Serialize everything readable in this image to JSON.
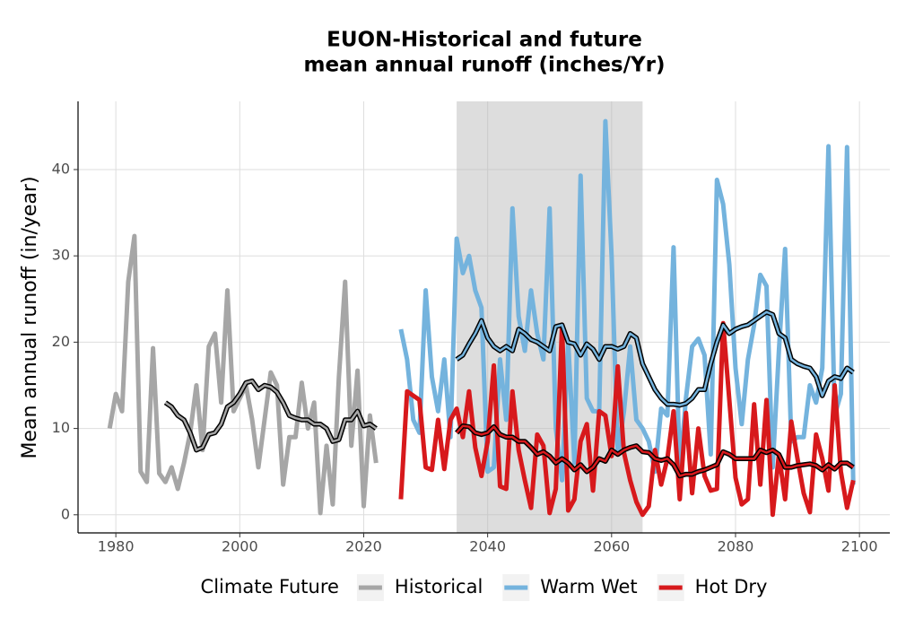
{
  "chart_data": {
    "type": "line",
    "title": [
      "EUON-Historical and future",
      "mean annual runoff (inches/Yr)"
    ],
    "y_label": "Mean annual runoff (in/year)",
    "xlim": [
      1973.9,
      2104.9
    ],
    "ylim": [
      -2.1,
      47.9
    ],
    "xticks": [
      1980,
      2000,
      2020,
      2040,
      2060,
      2080,
      2100
    ],
    "yticks": [
      0,
      10,
      20,
      30,
      40
    ],
    "grid": true,
    "shade": [
      2035,
      2065
    ],
    "legend_title": "Climate Future",
    "legend_position": "bottom",
    "series": [
      {
        "name": "Historical",
        "color": "#a6a6a6",
        "x": [
          1979,
          1980,
          1981,
          1982,
          1983,
          1984,
          1985,
          1986,
          1987,
          1988,
          1989,
          1990,
          1991,
          1992,
          1993,
          1994,
          1995,
          1996,
          1997,
          1998,
          1999,
          2000,
          2001,
          2002,
          2003,
          2004,
          2005,
          2006,
          2007,
          2008,
          2009,
          2010,
          2011,
          2012,
          2013,
          2014,
          2015,
          2016,
          2017,
          2018,
          2019,
          2020,
          2021,
          2022
        ],
        "values": [
          10,
          14,
          12,
          27,
          32.3,
          5,
          3.8,
          19.3,
          4.8,
          3.8,
          5.5,
          3,
          6,
          9.5,
          15,
          7.5,
          19.5,
          21,
          13,
          26,
          12,
          13.5,
          15,
          11,
          5.5,
          11,
          16.5,
          15,
          3.5,
          9,
          9,
          15.3,
          10,
          13,
          0.2,
          8,
          1.2,
          16,
          27,
          8,
          16.7,
          1,
          11.5,
          6
        ]
      },
      {
        "name": "Warm Wet",
        "color": "#74b3dd",
        "x": [
          2026,
          2027,
          2028,
          2029,
          2030,
          2031,
          2032,
          2033,
          2034,
          2035,
          2036,
          2037,
          2038,
          2039,
          2040,
          2041,
          2042,
          2043,
          2044,
          2045,
          2046,
          2047,
          2048,
          2049,
          2050,
          2051,
          2052,
          2053,
          2054,
          2055,
          2056,
          2057,
          2058,
          2059,
          2060,
          2061,
          2062,
          2063,
          2064,
          2065,
          2066,
          2067,
          2068,
          2069,
          2070,
          2071,
          2072,
          2073,
          2074,
          2075,
          2076,
          2077,
          2078,
          2079,
          2080,
          2081,
          2082,
          2083,
          2084,
          2085,
          2086,
          2087,
          2088,
          2089,
          2090,
          2091,
          2092,
          2093,
          2094,
          2095,
          2096,
          2097,
          2098,
          2099
        ],
        "values": [
          21.5,
          18,
          11,
          9.5,
          26,
          16,
          12,
          18,
          9,
          32,
          28,
          30,
          26,
          24,
          5,
          5.5,
          18,
          11,
          35.5,
          23,
          19,
          26,
          21,
          18,
          35.5,
          10,
          4,
          20,
          6,
          39.3,
          13.5,
          12,
          12,
          45.6,
          30,
          7,
          12,
          19.5,
          11,
          10,
          8.5,
          5,
          12.3,
          11.5,
          31,
          5,
          13.5,
          19.5,
          20.4,
          18.5,
          7,
          38.8,
          36,
          29,
          17,
          10.5,
          18,
          22,
          27.8,
          26.5,
          5.5,
          19,
          30.8,
          8.5,
          9,
          9,
          15,
          13,
          17,
          42.7,
          11.5,
          14,
          42.6,
          3.5
        ]
      },
      {
        "name": "Hot Dry",
        "color": "#d7191c",
        "x": [
          2026,
          2027,
          2028,
          2029,
          2030,
          2031,
          2032,
          2033,
          2034,
          2035,
          2036,
          2037,
          2038,
          2039,
          2040,
          2041,
          2042,
          2043,
          2044,
          2045,
          2046,
          2047,
          2048,
          2049,
          2050,
          2051,
          2052,
          2053,
          2054,
          2055,
          2056,
          2057,
          2058,
          2059,
          2060,
          2061,
          2062,
          2063,
          2064,
          2065,
          2066,
          2067,
          2068,
          2069,
          2070,
          2071,
          2072,
          2073,
          2074,
          2075,
          2076,
          2077,
          2078,
          2079,
          2080,
          2081,
          2082,
          2083,
          2084,
          2085,
          2086,
          2087,
          2088,
          2089,
          2090,
          2091,
          2092,
          2093,
          2094,
          2095,
          2096,
          2097,
          2098,
          2099
        ],
        "values": [
          1.8,
          14.3,
          13.8,
          13.3,
          5.5,
          5.2,
          11,
          5.3,
          11,
          12.3,
          9,
          14.3,
          7.8,
          4.5,
          8.5,
          17.3,
          3.3,
          3,
          14.3,
          7.5,
          4,
          0.8,
          9.3,
          8,
          0.2,
          3,
          22,
          0.5,
          1.8,
          8.5,
          10.5,
          2.8,
          12,
          11.5,
          6.8,
          17.2,
          7.2,
          4,
          1.5,
          0,
          1,
          7.5,
          3.5,
          6.5,
          12,
          1.8,
          11.8,
          2.5,
          10,
          4.5,
          2.8,
          3,
          22.2,
          13.3,
          4.3,
          1.2,
          1.8,
          12.8,
          3.5,
          13.3,
          0,
          7,
          1.8,
          10.8,
          6.5,
          2.5,
          0.3,
          9.3,
          6.5,
          2.8,
          15,
          5,
          0.8,
          4
        ]
      }
    ],
    "rolling_series": [
      {
        "color": "#a6a6a6",
        "outline": "#000000",
        "x": [
          1988,
          1989,
          1990,
          1991,
          1992,
          1993,
          1994,
          1995,
          1996,
          1997,
          1998,
          1999,
          2000,
          2001,
          2002,
          2003,
          2004,
          2005,
          2006,
          2007,
          2008,
          2009,
          2010,
          2011,
          2012,
          2013,
          2014,
          2015,
          2016,
          2017,
          2018,
          2019,
          2020,
          2021,
          2022
        ],
        "values": [
          13,
          12.5,
          11.5,
          11,
          9.5,
          7.5,
          7.8,
          9.3,
          9.5,
          10.5,
          12.5,
          13,
          14,
          15.3,
          15.5,
          14.5,
          15,
          14.8,
          14.2,
          13,
          11.5,
          11.2,
          11,
          11,
          10.5,
          10.5,
          10,
          8.5,
          8.7,
          11,
          11,
          12,
          10.3,
          10.5,
          10
        ]
      },
      {
        "color": "#74b3dd",
        "outline": "#000000",
        "x": [
          2035,
          2036,
          2037,
          2038,
          2039,
          2040,
          2041,
          2042,
          2043,
          2044,
          2045,
          2046,
          2047,
          2048,
          2049,
          2050,
          2051,
          2052,
          2053,
          2054,
          2055,
          2056,
          2057,
          2058,
          2059,
          2060,
          2061,
          2062,
          2063,
          2064,
          2065,
          2066,
          2067,
          2068,
          2069,
          2070,
          2071,
          2072,
          2073,
          2074,
          2075,
          2076,
          2077,
          2078,
          2079,
          2080,
          2081,
          2082,
          2083,
          2084,
          2085,
          2086,
          2087,
          2088,
          2089,
          2090,
          2091,
          2092,
          2093,
          2094,
          2095,
          2096,
          2097,
          2098,
          2099
        ],
        "values": [
          18,
          18.5,
          19.8,
          21,
          22.5,
          20.5,
          19.5,
          19,
          19.5,
          19,
          21.5,
          21,
          20.3,
          20,
          19.5,
          19,
          21.8,
          22,
          20,
          19.8,
          18.5,
          19.8,
          19.2,
          18,
          19.5,
          19.5,
          19.2,
          19.5,
          21,
          20.5,
          17.5,
          16,
          14.5,
          13.5,
          12.8,
          12.8,
          12.7,
          12.9,
          13.5,
          14.5,
          14.5,
          17.5,
          20,
          22,
          21,
          21.5,
          21.8,
          22,
          22.5,
          23,
          23.5,
          23.2,
          21,
          20.5,
          18,
          17.5,
          17.2,
          17,
          16,
          13.8,
          15.5,
          16,
          15.8,
          17,
          16.5
        ]
      },
      {
        "color": "#d7191c",
        "outline": "#000000",
        "x": [
          2035,
          2036,
          2037,
          2038,
          2039,
          2040,
          2041,
          2042,
          2043,
          2044,
          2045,
          2046,
          2047,
          2048,
          2049,
          2050,
          2051,
          2052,
          2053,
          2054,
          2055,
          2056,
          2057,
          2058,
          2059,
          2060,
          2061,
          2062,
          2063,
          2064,
          2065,
          2066,
          2067,
          2068,
          2069,
          2070,
          2071,
          2072,
          2073,
          2074,
          2075,
          2076,
          2077,
          2078,
          2079,
          2080,
          2081,
          2082,
          2083,
          2084,
          2085,
          2086,
          2087,
          2088,
          2089,
          2090,
          2091,
          2092,
          2093,
          2094,
          2095,
          2096,
          2097,
          2098,
          2099
        ],
        "values": [
          9.5,
          10.3,
          10.2,
          9.5,
          9.3,
          9.5,
          10.2,
          9.3,
          9,
          9,
          8.5,
          8.5,
          7.8,
          7,
          7.3,
          6.8,
          6,
          6.5,
          6,
          5.2,
          5.8,
          5,
          5.5,
          6.5,
          6.2,
          7.5,
          7,
          7.5,
          7.8,
          8,
          7.3,
          7.2,
          6.5,
          6.3,
          6.5,
          5.8,
          4.5,
          4.7,
          4.7,
          5,
          5.2,
          5.5,
          5.8,
          7.3,
          7,
          6.5,
          6.5,
          6.5,
          6.5,
          7.5,
          7.2,
          7.5,
          7,
          5.5,
          5.5,
          5.7,
          5.8,
          5.9,
          5.7,
          5.2,
          5.8,
          5.3,
          6,
          6,
          5.5
        ]
      }
    ]
  }
}
